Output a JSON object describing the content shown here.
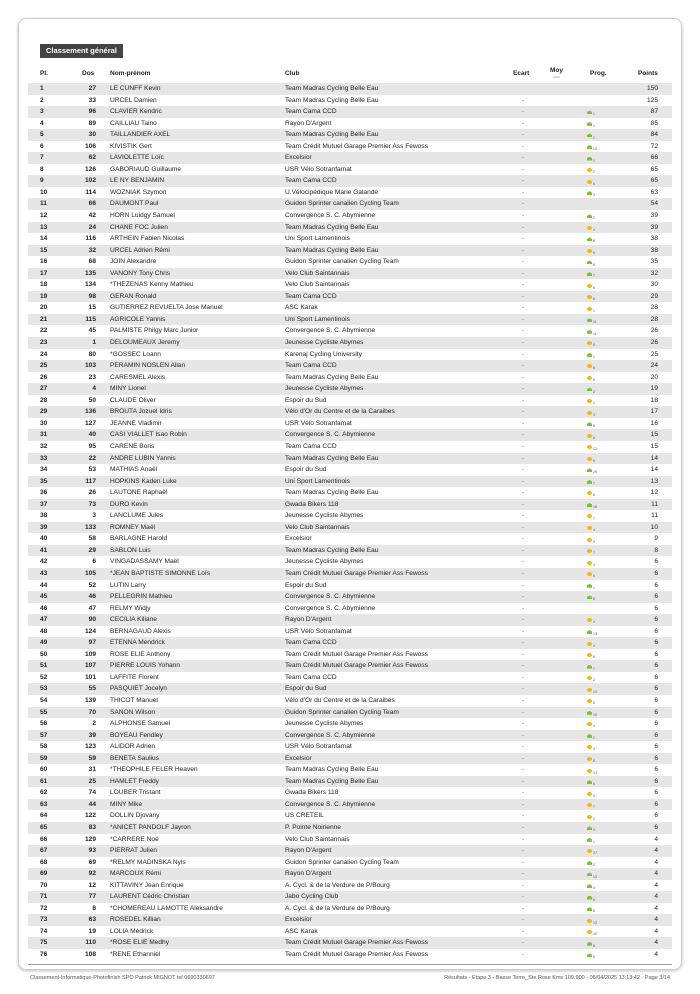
{
  "section_title": "Classement général",
  "columns": {
    "pl": "Pl.",
    "dos": "Dos",
    "name": "Nom-prénom",
    "club": "Club",
    "ecart": "Ecart",
    "moy": "Moy",
    "moy_unit": "km/h",
    "prog": "Prog.",
    "points": "Points"
  },
  "colors": {
    "up": "#7cc51f",
    "down": "#f5b800",
    "title_bg": "#444444",
    "row_alt": "#e6e6e6"
  },
  "rows": [
    [
      1,
      27,
      "LE CUNFF Kevin",
      "Team Madras Cycling Belle Eau",
      "",
      "",
      null,
      150
    ],
    [
      2,
      33,
      "URCEL Damien",
      "Team Madras Cycling Belle Eau",
      "-",
      "",
      null,
      125
    ],
    [
      3,
      96,
      "CLAVIER Kendric",
      "Team Cama CCD",
      "-",
      "up",
      1,
      87
    ],
    [
      4,
      89,
      "CAILLIAU Taino",
      "Rayon D'Argent",
      "-",
      "up",
      1,
      85
    ],
    [
      5,
      30,
      "TAILLANDIER AXEL",
      "Team Madras Cycling Belle Eau",
      "-",
      "up",
      2,
      84
    ],
    [
      6,
      106,
      "KIVISTIK Gert",
      "Team Crédit Mutuel Garage Premier Ass Fewoss",
      "-",
      "up",
      10,
      72
    ],
    [
      7,
      62,
      "LAVIOLETTE Loïc",
      "Excelsior",
      "-",
      "up",
      1,
      66
    ],
    [
      8,
      126,
      "GABORIAUD Guillaume",
      "USR Vélo Sotranfamat",
      "-",
      "down",
      2,
      65
    ],
    [
      9,
      102,
      "LE NY BENJAMIN",
      "Team Cama CCD",
      "-",
      "down",
      6,
      65
    ],
    [
      10,
      114,
      "WOZNIAK Szymon",
      "U.Vélocipédique Marie Galande",
      "-",
      "up",
      3,
      63
    ],
    [
      11,
      66,
      "DAUMONT Paul",
      "Guidon Sprinter canalien Cycling Team",
      "-",
      "",
      null,
      54
    ],
    [
      12,
      42,
      "HORN Luidgy Samuel",
      "Convergence  S. C. Abymienne",
      "-",
      "up",
      2,
      39
    ],
    [
      13,
      24,
      "CHANE FOC Julien",
      "Team Madras Cycling Belle Eau",
      "-",
      "down",
      4,
      39
    ],
    [
      14,
      116,
      "ARTHEIN Fabien Nicolas",
      "Uni Sport Lamentinois",
      "-",
      "up",
      8,
      38
    ],
    [
      15,
      32,
      "URCEL Adrien Rémi",
      "Team Madras Cycling Belle Eau",
      "-",
      "down",
      5,
      38
    ],
    [
      16,
      68,
      "JOIN Alexandre",
      "Guidon Sprinter canalien Cycling Team",
      "-",
      "up",
      5,
      35
    ],
    [
      17,
      135,
      "VANONY Tony Chris",
      "Velo Club Saintannais",
      "-",
      "up",
      7,
      32
    ],
    [
      18,
      134,
      "*THEZENAS Kenny Mathieu",
      "Velo Club Saintannais",
      "-",
      "down",
      5,
      30
    ],
    [
      19,
      98,
      "GERAN Ronald",
      "Team Cama CCD",
      "-",
      "down",
      6,
      29
    ],
    [
      20,
      15,
      "GUTIERREZ REVUELTA Jose Manuel",
      "ASC Karak",
      "-",
      "down",
      1,
      28
    ],
    [
      21,
      115,
      "AGRICOLE Yannis",
      "Uni Sport Lamentinois",
      "-",
      "up",
      11,
      28
    ],
    [
      22,
      45,
      "PALMISTE Philgy Marc Junior",
      "Convergence  S. C. Abymienne",
      "-",
      "up",
      11,
      26
    ],
    [
      23,
      1,
      "DELOUMEAUX Jeremy",
      "Jeunesse Cycliste Abymes",
      "-",
      "down",
      5,
      26
    ],
    [
      24,
      80,
      "*GOSSEC Loann",
      "Karenaj Cycling University",
      "-",
      "up",
      1,
      25
    ],
    [
      25,
      103,
      "PERAMIN NOSLEN Allan",
      "Team Cama CCD",
      "-",
      "down",
      8,
      24
    ],
    [
      26,
      23,
      "CARESMEL Alexis",
      "Team Madras Cycling Belle Eau",
      "-",
      "down",
      5,
      20
    ],
    [
      27,
      4,
      "MINY Lionel",
      "Jeunesse Cycliste Abymes",
      "-",
      "up",
      2,
      19
    ],
    [
      28,
      50,
      "CLAUDE Oliver",
      "Espoir du Sud",
      "-",
      "down",
      1,
      18
    ],
    [
      29,
      136,
      "BROUTA Jozuel Idris",
      "Vélo d'Or du Centre et de la Caraibes",
      "-",
      "down",
      3,
      17
    ],
    [
      30,
      127,
      "JEANNE Vladimir",
      "USR Vélo Sotranfamat",
      "-",
      "up",
      5,
      16
    ],
    [
      31,
      40,
      "CASI VIALLET Isao Robin",
      "Convergence  S. C. Abymienne",
      "-",
      "down",
      6,
      15
    ],
    [
      32,
      95,
      "CARENE Boris",
      "Team Cama CCD",
      "-",
      "down",
      12,
      15
    ],
    [
      33,
      22,
      "ANDRE LUBIN Yannis",
      "Team Madras Cycling Belle Eau",
      "-",
      "down",
      5,
      14
    ],
    [
      34,
      53,
      "MATHIAS Anaël",
      "Espoir du Sud",
      "-",
      "up",
      29,
      14
    ],
    [
      35,
      117,
      "HOPKINS Kaden Luke",
      "Uni Sport Lamentinois",
      "-",
      "up",
      7,
      13
    ],
    [
      36,
      26,
      "LAUTONE Raphaël",
      "Team Madras Cycling Belle Eau",
      "-",
      "down",
      6,
      12
    ],
    [
      37,
      73,
      "DURO Kevin",
      "Gwada Bikers 118",
      "-",
      "up",
      16,
      11
    ],
    [
      38,
      3,
      "LANCLUME Jules",
      "Jeunesse Cycliste Abymes",
      "-",
      "down",
      7,
      11
    ],
    [
      39,
      133,
      "ROMNEY Maël",
      "Velo Club Saintannais",
      "-",
      "down",
      4,
      10
    ],
    [
      40,
      58,
      "BARLAGNE Harold",
      "Excelsior",
      "-",
      "down",
      3,
      9
    ],
    [
      41,
      29,
      "SABLON Luis",
      "Team Madras Cycling Belle Eau",
      "-",
      "down",
      7,
      8
    ],
    [
      42,
      6,
      "VINGADASSAMY Maël",
      "Jeunesse Cycliste Abymes",
      "-",
      "down",
      4,
      6
    ],
    [
      43,
      105,
      "*JEAN BAPTISTE SIMONNE Loïs",
      "Team Crédit Mutuel Garage Premier Ass Fewoss",
      "-",
      "down",
      6,
      6
    ],
    [
      44,
      52,
      "LUTIN Larry",
      "Espoir du Sud",
      "-",
      "up",
      1,
      6
    ],
    [
      45,
      46,
      "PELLEGRIN Mathieu",
      "Convergence  S. C. Abymienne",
      "-",
      "up",
      8,
      6
    ],
    [
      46,
      47,
      "RELMY Widjy",
      "Convergence  S. C. Abymienne",
      "-",
      "",
      null,
      6
    ],
    [
      47,
      90,
      "CECILIA Kiliane",
      "Rayon D'Argent",
      "-",
      "down",
      4,
      6
    ],
    [
      48,
      124,
      "BERNAGAUD Alexis",
      "USR Vélo Sotranfamat",
      "-",
      "up",
      13,
      6
    ],
    [
      49,
      97,
      "ETENNA Mendrick",
      "Team Cama CCD",
      "-",
      "down",
      4,
      6
    ],
    [
      50,
      109,
      "ROSE ELIE Anthony",
      "Team Crédit Mutuel Garage Premier Ass Fewoss",
      "-",
      "down",
      5,
      6
    ],
    [
      51,
      107,
      "PIERRE LOUIS Yohann",
      "Team Crédit Mutuel Garage Premier Ass Fewoss",
      "-",
      "up",
      7,
      6
    ],
    [
      52,
      101,
      "LAFFITE Florent",
      "Team Cama CCD",
      "-",
      "down",
      2,
      6
    ],
    [
      53,
      55,
      "PASQUIET Jocelyn",
      "Espoir du Sud",
      "-",
      "down",
      12,
      6
    ],
    [
      54,
      139,
      "THICOT Manuel",
      "Vélo d'Or du Centre et de la Caraibes",
      "-",
      "down",
      5,
      6
    ],
    [
      55,
      70,
      "SANON Wilson",
      "Guidon Sprinter canalien Cycling Team",
      "-",
      "up",
      10,
      6
    ],
    [
      56,
      2,
      "ALPHONSE Samuel",
      "Jeunesse Cycliste Abymes",
      "-",
      "down",
      4,
      6
    ],
    [
      57,
      39,
      "BOYEAU Fendley",
      "Convergence  S. C. Abymienne",
      "-",
      "up",
      2,
      6
    ],
    [
      58,
      123,
      "ALIDOR Adrien",
      "USR Vélo Sotranfamat",
      "-",
      "down",
      3,
      6
    ],
    [
      59,
      59,
      "BENETA Saulius",
      "Excelsior",
      "-",
      "down",
      8,
      6
    ],
    [
      60,
      31,
      "*THEOPHILE FELER Heaven",
      "Team Madras Cycling Belle Eau",
      "-",
      "down",
      13,
      6
    ],
    [
      61,
      25,
      "HAMLET Freddy",
      "Team Madras Cycling Belle Eau",
      "-",
      "up",
      6,
      6
    ],
    [
      62,
      74,
      "LOUBER Tristant",
      "Gwada Bikers 118",
      "-",
      "down",
      3,
      6
    ],
    [
      63,
      44,
      "MINY Mike",
      "Convergence  S. C. Abymienne",
      "-",
      "down",
      7,
      6
    ],
    [
      64,
      122,
      "DOLLIN Djovany",
      "US CRETEIL",
      "-",
      "down",
      2,
      6
    ],
    [
      65,
      83,
      "*ANICET PANDOLF Jayron",
      "P. Pointe Noirienne",
      "-",
      "up",
      3,
      6
    ],
    [
      66,
      129,
      "*CARRERE Noé",
      "Velo Club Saintannais",
      "-",
      "up",
      1,
      4
    ],
    [
      67,
      93,
      "PIERRAT Julien",
      "Rayon D'Argent",
      "-",
      "down",
      27,
      4
    ],
    [
      68,
      69,
      "*RELMY MADINSKA Nyls",
      "Guidon Sprinter canalien Cycling Team",
      "-",
      "up",
      2,
      4
    ],
    [
      69,
      92,
      "MARCOUX Rémi",
      "Rayon D'Argent",
      "-",
      "up",
      13,
      4
    ],
    [
      70,
      12,
      "KITTAVINY Jean Enrique",
      "A. Cycl. & de la  Verdure de  P/Bourg",
      "-",
      "up",
      4,
      4
    ],
    [
      71,
      77,
      "LAURENT Cédric Christian",
      "Jabo Cycling Club",
      "-",
      "up",
      6,
      4
    ],
    [
      72,
      8,
      "*CHOMEREAU LAMOTTE Aleksandre",
      "A. Cycl. & de la  Verdure de  P/Bourg",
      "-",
      "up",
      8,
      4
    ],
    [
      73,
      63,
      "ROSEDEL Killian",
      "Excelsior",
      "-",
      "down",
      13,
      4
    ],
    [
      74,
      19,
      "LOLIA Médrick",
      "ASC Karak",
      "-",
      "down",
      10,
      4
    ],
    [
      75,
      110,
      "*ROSE ELIE Medhy",
      "Team Crédit Mutuel Garage Premier Ass Fewoss",
      "-",
      "up",
      8,
      4
    ],
    [
      76,
      108,
      "*RENE Ethanniel",
      "Team Crédit Mutuel Garage Premier Ass Fewoss",
      "-",
      "up",
      5,
      4
    ]
  ],
  "footer": {
    "left": "Classement-Informatique-Photofinish  SPO Patrick MIGNOT  tel 0690330697",
    "right": "Résultats - Etape 3 - Basse Terre_Ste Rose Kms 109,900 · 06/04/2025 13:13:42 · Page 3/14"
  }
}
